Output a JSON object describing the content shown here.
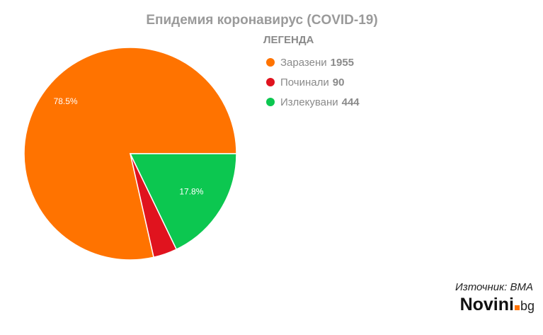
{
  "chart_data": {
    "type": "pie",
    "title": "Епидемия коронавирус (COVID-19)",
    "legend_title": "ЛЕГЕНДА",
    "legend_placement": "top-right",
    "slices": [
      {
        "label": "Заразени",
        "value": 1955,
        "percent_label": "78.5%",
        "color": "#ff7300"
      },
      {
        "label": "Починали",
        "value": 90,
        "percent_label": "",
        "color": "#e0131e"
      },
      {
        "label": "Излекувани",
        "value": 444,
        "percent_label": "17.8%",
        "color": "#0cc750"
      }
    ]
  },
  "footer": {
    "source": "Източник: ВМА",
    "logo_name": "Novini",
    "logo_tld": "bg"
  }
}
